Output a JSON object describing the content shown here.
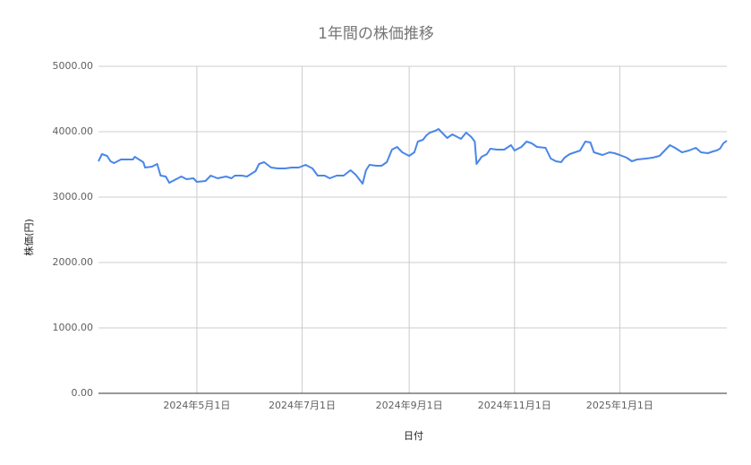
{
  "chart_data": {
    "type": "line",
    "title": "1年間の株価推移",
    "x_label": "日付",
    "y_label": "株価(円)",
    "grid": true,
    "xlim": [
      "2024-03-05",
      "2025-03-04"
    ],
    "xticks": [
      {
        "value": "2024-05-01",
        "label": "2024年5月1日"
      },
      {
        "value": "2024-07-01",
        "label": "2024年7月1日"
      },
      {
        "value": "2024-09-01",
        "label": "2024年9月1日"
      },
      {
        "value": "2024-11-01",
        "label": "2024年11月1日"
      },
      {
        "value": "2025-01-01",
        "label": "2025年1月1日"
      }
    ],
    "ylim": [
      0,
      5000
    ],
    "yticks": [
      {
        "value": 0,
        "label": "0.00"
      },
      {
        "value": 1000,
        "label": "1000.00"
      },
      {
        "value": 2000,
        "label": "2000.00"
      },
      {
        "value": 3000,
        "label": "3000.00"
      },
      {
        "value": 4000,
        "label": "4000.00"
      },
      {
        "value": 5000,
        "label": "5000.00"
      }
    ],
    "series": [
      {
        "name": "株価",
        "color": "#4a86e8",
        "x": [
          "2024-03-05",
          "2024-03-07",
          "2024-03-10",
          "2024-03-12",
          "2024-03-14",
          "2024-03-18",
          "2024-03-25",
          "2024-03-26",
          "2024-03-31",
          "2024-04-01",
          "2024-04-05",
          "2024-04-08",
          "2024-04-10",
          "2024-04-13",
          "2024-04-15",
          "2024-04-19",
          "2024-04-22",
          "2024-04-25",
          "2024-04-29",
          "2024-05-01",
          "2024-05-06",
          "2024-05-09",
          "2024-05-13",
          "2024-05-18",
          "2024-05-21",
          "2024-05-23",
          "2024-05-27",
          "2024-05-30",
          "2024-06-04",
          "2024-06-06",
          "2024-06-09",
          "2024-06-13",
          "2024-06-17",
          "2024-06-21",
          "2024-06-25",
          "2024-06-29",
          "2024-07-03",
          "2024-07-07",
          "2024-07-10",
          "2024-07-14",
          "2024-07-17",
          "2024-07-21",
          "2024-07-25",
          "2024-07-29",
          "2024-08-01",
          "2024-08-05",
          "2024-08-07",
          "2024-08-09",
          "2024-08-13",
          "2024-08-16",
          "2024-08-19",
          "2024-08-22",
          "2024-08-25",
          "2024-08-28",
          "2024-09-01",
          "2024-09-04",
          "2024-09-06",
          "2024-09-09",
          "2024-09-11",
          "2024-09-13",
          "2024-09-16",
          "2024-09-18",
          "2024-09-21",
          "2024-09-23",
          "2024-09-26",
          "2024-10-01",
          "2024-10-04",
          "2024-10-07",
          "2024-10-09",
          "2024-10-10",
          "2024-10-13",
          "2024-10-16",
          "2024-10-18",
          "2024-10-22",
          "2024-10-26",
          "2024-10-30",
          "2024-11-01",
          "2024-11-05",
          "2024-11-08",
          "2024-11-11",
          "2024-11-14",
          "2024-11-19",
          "2024-11-22",
          "2024-11-25",
          "2024-11-28",
          "2024-11-30",
          "2024-12-03",
          "2024-12-06",
          "2024-12-09",
          "2024-12-12",
          "2024-12-15",
          "2024-12-17",
          "2024-12-22",
          "2024-12-26",
          "2024-12-29",
          "2025-01-01",
          "2025-01-05",
          "2025-01-08",
          "2025-01-11",
          "2025-01-16",
          "2025-01-20",
          "2025-01-24",
          "2025-01-27",
          "2025-01-30",
          "2025-02-02",
          "2025-02-06",
          "2025-02-10",
          "2025-02-14",
          "2025-02-17",
          "2025-02-21",
          "2025-02-24",
          "2025-02-26",
          "2025-02-28",
          "2025-03-02",
          "2025-03-04"
        ],
        "values": [
          3548,
          3658,
          3630,
          3548,
          3520,
          3575,
          3575,
          3616,
          3534,
          3452,
          3466,
          3507,
          3329,
          3315,
          3219,
          3274,
          3315,
          3274,
          3288,
          3233,
          3247,
          3329,
          3288,
          3315,
          3288,
          3329,
          3329,
          3315,
          3397,
          3507,
          3534,
          3452,
          3438,
          3438,
          3452,
          3452,
          3493,
          3438,
          3329,
          3329,
          3288,
          3329,
          3329,
          3411,
          3342,
          3205,
          3411,
          3493,
          3479,
          3479,
          3534,
          3726,
          3767,
          3685,
          3630,
          3685,
          3849,
          3877,
          3945,
          3986,
          4014,
          4041,
          3959,
          3904,
          3959,
          3890,
          3986,
          3918,
          3849,
          3507,
          3616,
          3658,
          3740,
          3726,
          3726,
          3795,
          3712,
          3767,
          3849,
          3822,
          3767,
          3753,
          3589,
          3548,
          3534,
          3603,
          3658,
          3685,
          3712,
          3849,
          3836,
          3685,
          3644,
          3685,
          3671,
          3644,
          3603,
          3548,
          3575,
          3589,
          3603,
          3630,
          3712,
          3795,
          3753,
          3685,
          3712,
          3753,
          3685,
          3671,
          3699,
          3712,
          3740,
          3822,
          3863
        ]
      }
    ]
  }
}
